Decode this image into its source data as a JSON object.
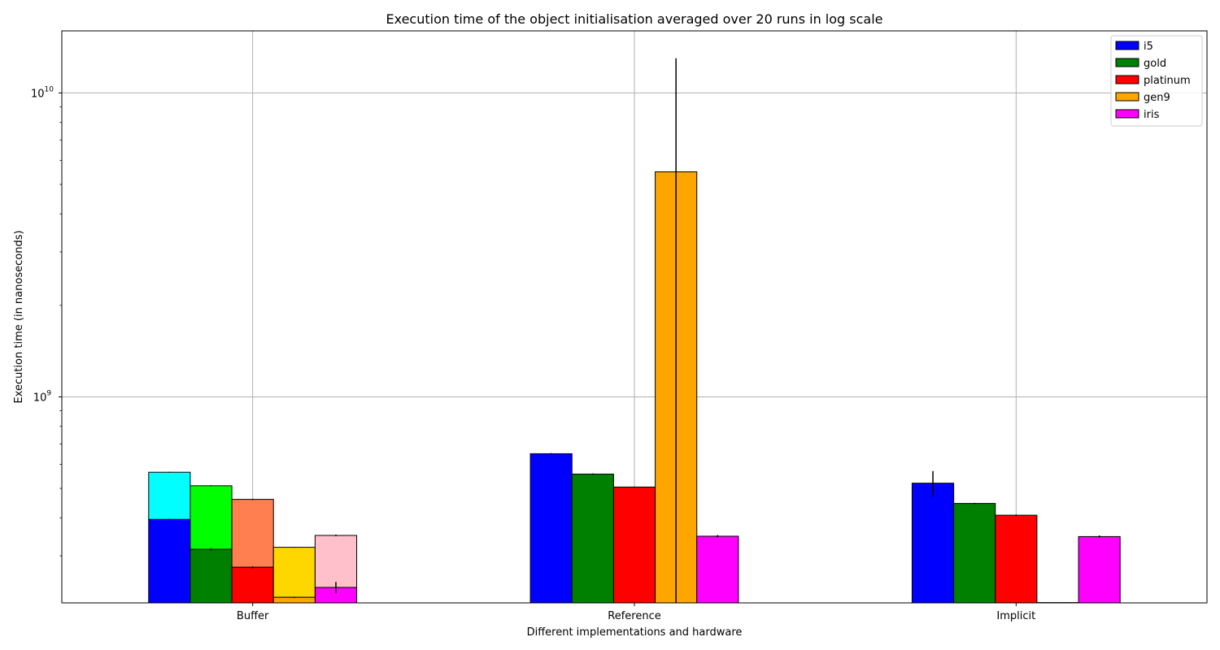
{
  "chart_data": {
    "type": "bar",
    "title": "Execution time of the object initialisation averaged over 20 runs in log scale",
    "xlabel": "Different implementations and hardware",
    "ylabel": "Execution time (in nanoseconds)",
    "yscale": "log",
    "ylim": [
      210000000,
      16000000000
    ],
    "yticks": [
      {
        "value": 1000000000,
        "base": "10",
        "exp": "9"
      },
      {
        "value": 10000000000,
        "base": "10",
        "exp": "10"
      }
    ],
    "grid": true,
    "legend_position": "top-right",
    "categories": [
      "Buffer",
      "Reference",
      "Implicit"
    ],
    "series": [
      {
        "name": "i5",
        "color": "#0000ff",
        "values": [
          395000000,
          650000000,
          520000000
        ],
        "errors": [
          2000000,
          3000000,
          50000000
        ]
      },
      {
        "name": "gold",
        "color": "#008000",
        "values": [
          315000000,
          557000000,
          446000000
        ],
        "errors": [
          3000000,
          3000000,
          2000000
        ]
      },
      {
        "name": "platinum",
        "color": "#ff0000",
        "values": [
          275000000,
          505000000,
          408000000
        ],
        "errors": [
          2000000,
          2000000,
          2000000
        ]
      },
      {
        "name": "gen9",
        "color": "#ffa500",
        "values": [
          219000000,
          5500000000,
          210500000
        ],
        "errors": [
          1000000,
          7500000000,
          500000
        ]
      },
      {
        "name": "iris",
        "color": "#ff00ff",
        "values": [
          236000000,
          348000000,
          347000000
        ],
        "errors": [
          10000000,
          3000000,
          3000000
        ]
      }
    ],
    "stacked_segments": {
      "category": "Buffer",
      "segments": [
        {
          "series": "i5",
          "color": "#00ffff",
          "top": 565000000,
          "error": 2000000
        },
        {
          "series": "gold",
          "color": "#00ff00",
          "top": 510000000,
          "error": 2000000
        },
        {
          "series": "platinum",
          "color": "#ff7f50",
          "top": 460000000,
          "error": 2000000
        },
        {
          "series": "gen9",
          "color": "#ffd700",
          "top": 320000000,
          "error": 1000000
        },
        {
          "series": "iris",
          "color": "#ffc0cb",
          "top": 350000000,
          "error": 2000000
        }
      ]
    }
  }
}
